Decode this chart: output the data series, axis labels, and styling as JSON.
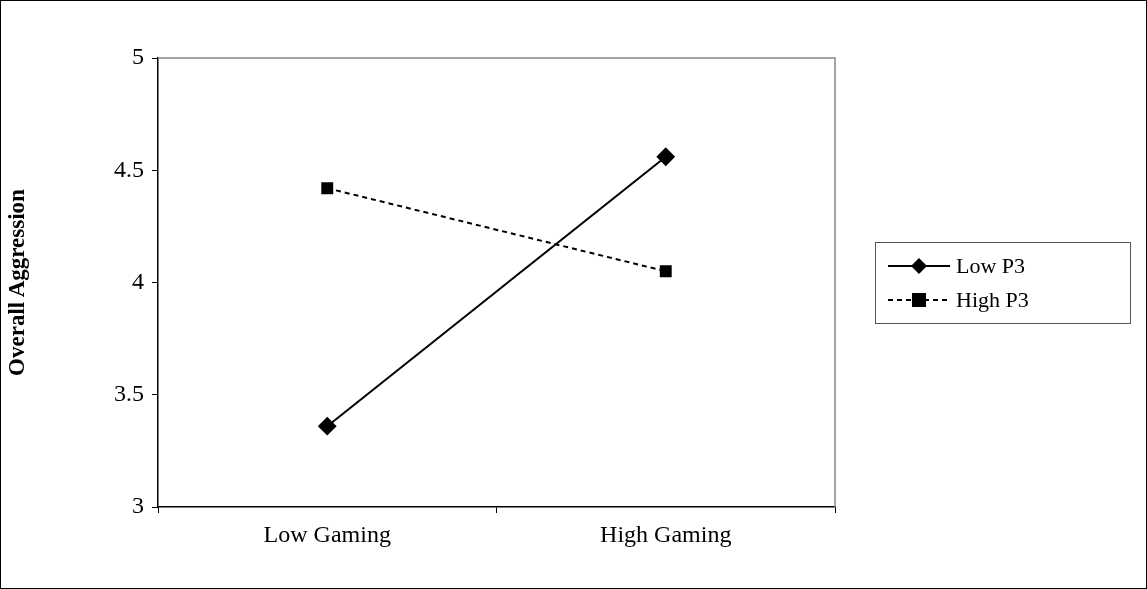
{
  "chart_data": {
    "type": "line",
    "ylabel": "Overall Aggression",
    "categories": [
      "Low Gaming",
      "High Gaming"
    ],
    "series": [
      {
        "name": "Low P3",
        "color": "#000000",
        "values": [
          3.36,
          4.56
        ],
        "marker": "diamond",
        "line_style": "solid"
      },
      {
        "name": "High P3",
        "color": "#000000",
        "values": [
          4.42,
          4.05
        ],
        "marker": "square",
        "line_style": "dashed"
      }
    ],
    "ylim": [
      3,
      5
    ],
    "yticks": [
      3,
      3.5,
      4,
      4.5,
      5
    ],
    "grid": false,
    "legend": "right"
  }
}
